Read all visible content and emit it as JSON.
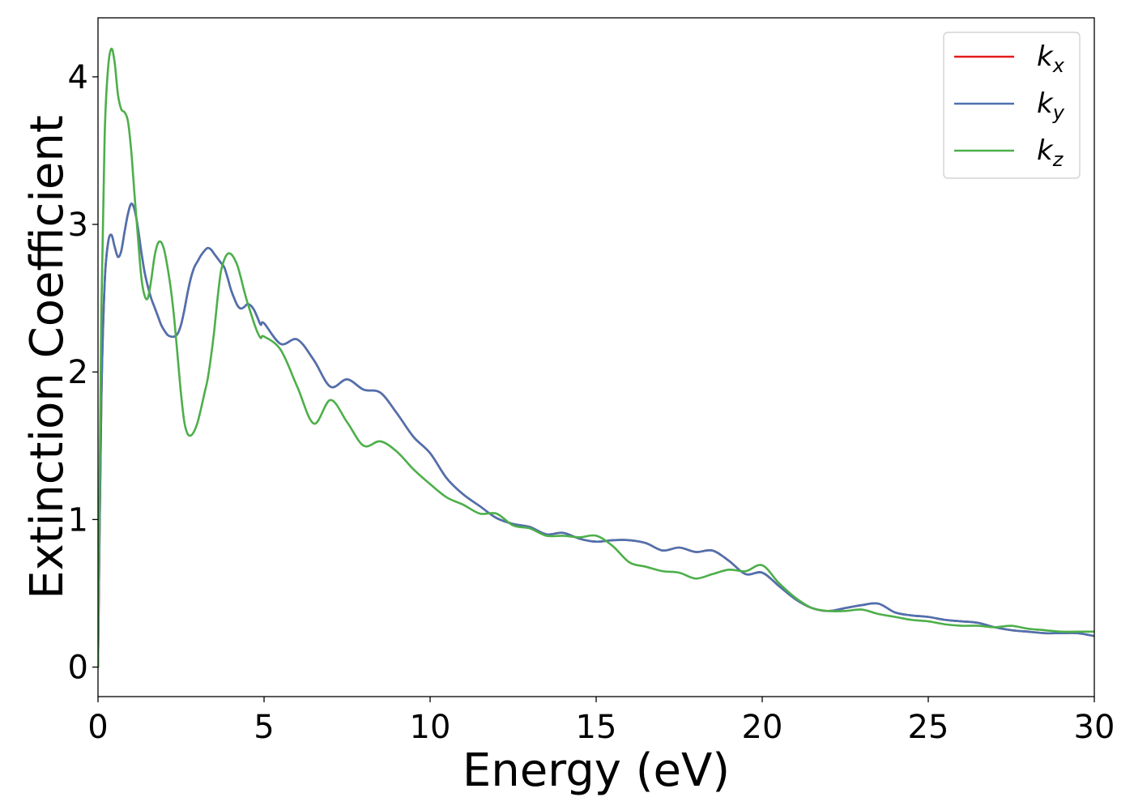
{
  "chart_data": {
    "type": "line",
    "xlabel": "Energy (eV)",
    "ylabel": "Extinction Coefficient",
    "xlim": [
      0,
      30
    ],
    "ylim": [
      -0.2,
      4.4
    ],
    "xticks": [
      0,
      5,
      10,
      15,
      20,
      25,
      30
    ],
    "yticks": [
      0,
      1,
      2,
      3,
      4
    ],
    "grid": false,
    "legend_position": "top-right",
    "x": [
      0,
      0.1,
      0.2,
      0.3,
      0.4,
      0.5,
      0.6,
      0.7,
      0.8,
      0.9,
      1.0,
      1.1,
      1.2,
      1.3,
      1.4,
      1.5,
      1.6,
      1.7,
      1.8,
      1.9,
      2.0,
      2.1,
      2.2,
      2.3,
      2.4,
      2.5,
      2.6,
      2.7,
      2.8,
      2.9,
      3.0,
      3.1,
      3.2,
      3.3,
      3.4,
      3.5,
      3.6,
      3.7,
      3.8,
      3.9,
      4.0,
      4.1,
      4.2,
      4.3,
      4.4,
      4.5,
      4.6,
      4.7,
      4.8,
      4.9,
      5.0,
      5.5,
      6.0,
      6.5,
      7.0,
      7.5,
      8.0,
      8.5,
      9.0,
      9.5,
      10.0,
      10.5,
      11.0,
      11.5,
      12.0,
      12.5,
      13.0,
      13.5,
      14.0,
      14.5,
      15.0,
      15.5,
      16.0,
      16.5,
      17.0,
      17.5,
      18.0,
      18.5,
      19.0,
      19.5,
      20.0,
      20.5,
      21.0,
      21.5,
      22.0,
      22.5,
      23.0,
      23.5,
      24.0,
      24.5,
      25.0,
      25.5,
      26.0,
      26.5,
      27.0,
      27.5,
      28.0,
      28.5,
      29.0,
      29.5,
      30.0
    ],
    "series": [
      {
        "name": "k_x",
        "label_base": "k",
        "label_sub": "x",
        "color": "#e41a1c",
        "values": [
          0,
          1.8,
          2.6,
          2.87,
          2.93,
          2.85,
          2.78,
          2.82,
          2.95,
          3.07,
          3.14,
          3.1,
          2.98,
          2.82,
          2.68,
          2.58,
          2.5,
          2.44,
          2.38,
          2.32,
          2.28,
          2.25,
          2.24,
          2.24,
          2.26,
          2.32,
          2.42,
          2.54,
          2.64,
          2.71,
          2.75,
          2.79,
          2.82,
          2.84,
          2.83,
          2.8,
          2.77,
          2.74,
          2.71,
          2.64,
          2.56,
          2.5,
          2.45,
          2.43,
          2.44,
          2.46,
          2.45,
          2.42,
          2.37,
          2.32,
          2.33,
          2.19,
          2.22,
          2.08,
          1.9,
          1.95,
          1.88,
          1.86,
          1.72,
          1.56,
          1.45,
          1.28,
          1.17,
          1.09,
          1.01,
          0.97,
          0.95,
          0.9,
          0.91,
          0.87,
          0.85,
          0.86,
          0.86,
          0.84,
          0.79,
          0.81,
          0.78,
          0.79,
          0.72,
          0.63,
          0.64,
          0.55,
          0.46,
          0.4,
          0.38,
          0.4,
          0.42,
          0.43,
          0.37,
          0.35,
          0.34,
          0.32,
          0.31,
          0.3,
          0.27,
          0.25,
          0.24,
          0.23,
          0.23,
          0.23,
          0.21
        ]
      },
      {
        "name": "k_y",
        "label_base": "k",
        "label_sub": "y",
        "color": "#4c72b0",
        "values": [
          0,
          1.8,
          2.6,
          2.87,
          2.93,
          2.85,
          2.78,
          2.82,
          2.95,
          3.07,
          3.14,
          3.1,
          2.98,
          2.82,
          2.68,
          2.58,
          2.5,
          2.44,
          2.38,
          2.32,
          2.28,
          2.25,
          2.24,
          2.24,
          2.26,
          2.32,
          2.42,
          2.54,
          2.64,
          2.71,
          2.75,
          2.79,
          2.82,
          2.84,
          2.83,
          2.8,
          2.77,
          2.74,
          2.71,
          2.64,
          2.56,
          2.5,
          2.45,
          2.43,
          2.44,
          2.46,
          2.45,
          2.42,
          2.37,
          2.32,
          2.33,
          2.19,
          2.22,
          2.08,
          1.9,
          1.95,
          1.88,
          1.86,
          1.72,
          1.56,
          1.45,
          1.28,
          1.17,
          1.09,
          1.01,
          0.97,
          0.95,
          0.9,
          0.91,
          0.87,
          0.85,
          0.86,
          0.86,
          0.84,
          0.79,
          0.81,
          0.78,
          0.79,
          0.72,
          0.63,
          0.64,
          0.55,
          0.46,
          0.4,
          0.38,
          0.4,
          0.42,
          0.43,
          0.37,
          0.35,
          0.34,
          0.32,
          0.31,
          0.3,
          0.27,
          0.25,
          0.24,
          0.23,
          0.23,
          0.23,
          0.21
        ]
      },
      {
        "name": "k_z",
        "label_base": "k",
        "label_sub": "z",
        "color": "#4daf4a",
        "values": [
          0,
          2.4,
          3.6,
          4.05,
          4.19,
          4.1,
          3.88,
          3.78,
          3.76,
          3.7,
          3.5,
          3.2,
          2.92,
          2.65,
          2.52,
          2.5,
          2.62,
          2.78,
          2.87,
          2.88,
          2.82,
          2.7,
          2.55,
          2.35,
          2.1,
          1.85,
          1.66,
          1.58,
          1.57,
          1.6,
          1.66,
          1.75,
          1.85,
          1.95,
          2.1,
          2.28,
          2.5,
          2.68,
          2.76,
          2.8,
          2.8,
          2.77,
          2.72,
          2.64,
          2.55,
          2.47,
          2.4,
          2.33,
          2.27,
          2.23,
          2.24,
          2.15,
          1.9,
          1.65,
          1.81,
          1.66,
          1.5,
          1.53,
          1.46,
          1.34,
          1.24,
          1.15,
          1.1,
          1.04,
          1.04,
          0.96,
          0.94,
          0.89,
          0.89,
          0.88,
          0.89,
          0.82,
          0.71,
          0.68,
          0.65,
          0.64,
          0.6,
          0.63,
          0.66,
          0.65,
          0.69,
          0.57,
          0.47,
          0.4,
          0.38,
          0.38,
          0.39,
          0.36,
          0.34,
          0.32,
          0.31,
          0.29,
          0.28,
          0.28,
          0.27,
          0.28,
          0.26,
          0.25,
          0.24,
          0.24,
          0.24
        ]
      }
    ]
  }
}
